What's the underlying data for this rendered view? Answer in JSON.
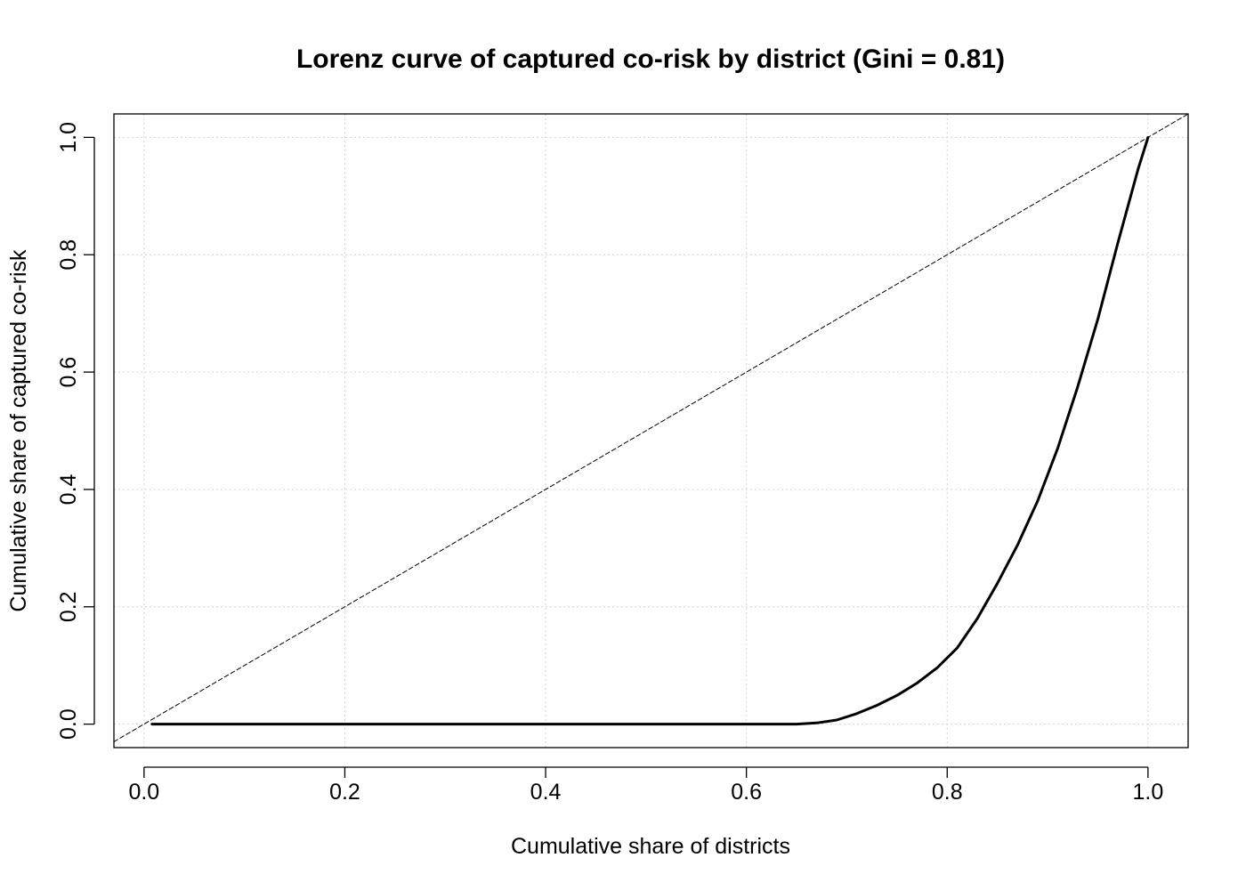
{
  "chart_data": {
    "type": "line",
    "title": "Lorenz curve of captured co-risk by district (Gini = 0.81)",
    "xlabel": "Cumulative share of districts",
    "ylabel": "Cumulative share of captured co-risk",
    "xlim": [
      -0.03,
      1.04
    ],
    "ylim": [
      -0.04,
      1.04
    ],
    "x_ticks": [
      "0.0",
      "0.2",
      "0.4",
      "0.6",
      "0.8",
      "1.0"
    ],
    "y_ticks": [
      "0.0",
      "0.2",
      "0.4",
      "0.6",
      "0.8",
      "1.0"
    ],
    "grid": true,
    "series": [
      {
        "line_style": "solid",
        "color": "#000000",
        "x": [
          0.008,
          0.1,
          0.2,
          0.3,
          0.4,
          0.5,
          0.6,
          0.65,
          0.67,
          0.69,
          0.71,
          0.73,
          0.75,
          0.77,
          0.79,
          0.81,
          0.83,
          0.85,
          0.87,
          0.89,
          0.91,
          0.93,
          0.95,
          0.97,
          0.99,
          1.0
        ],
        "y": [
          0.0,
          0.0,
          0.0,
          0.0,
          0.0,
          0.0,
          0.0,
          0.0,
          0.002,
          0.007,
          0.018,
          0.032,
          0.049,
          0.07,
          0.096,
          0.13,
          0.18,
          0.24,
          0.305,
          0.38,
          0.47,
          0.575,
          0.69,
          0.82,
          0.945,
          1.0
        ]
      },
      {
        "line_style": "dashed",
        "color": "#000000",
        "x": [
          -0.03,
          1.04
        ],
        "y": [
          -0.03,
          1.04
        ]
      }
    ]
  }
}
